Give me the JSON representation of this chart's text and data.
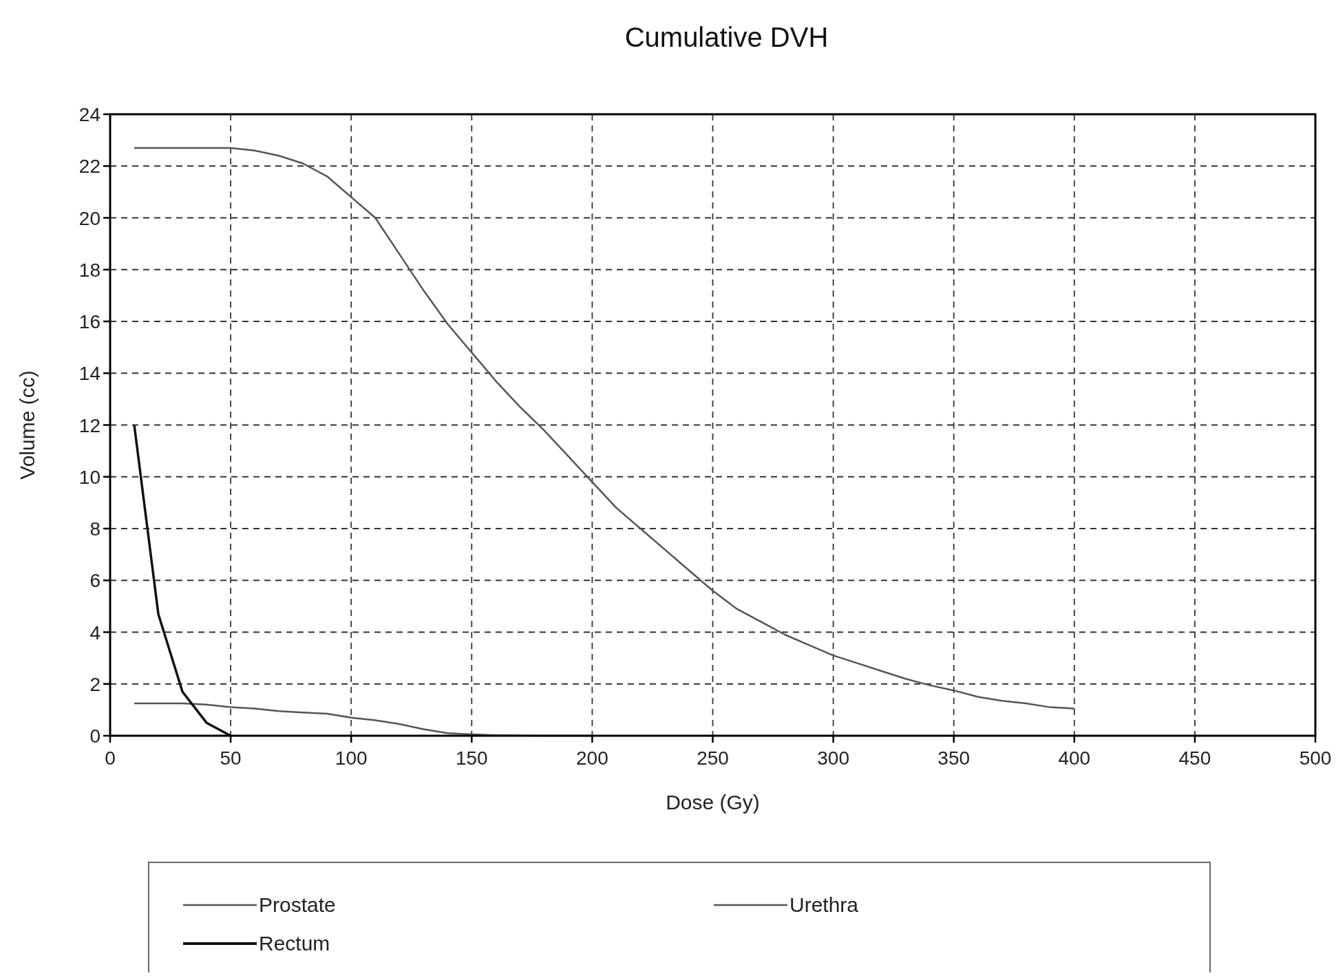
{
  "chart_data": {
    "type": "line",
    "title": "Cumulative DVH",
    "xlabel": "Dose (Gy)",
    "ylabel": "Volume (cc)",
    "xlim": [
      0,
      500
    ],
    "xticks": [
      0,
      50,
      100,
      150,
      200,
      250,
      300,
      350,
      400,
      450,
      500
    ],
    "ylim": [
      0,
      24
    ],
    "yticks": [
      0,
      2,
      4,
      6,
      8,
      10,
      12,
      14,
      16,
      18,
      20,
      22,
      24
    ],
    "grid": true,
    "legend": "bottom",
    "line_style": "solid",
    "series": [
      {
        "name": "Prostate",
        "color": "#555555",
        "x": [
          10,
          50,
          60,
          70,
          80,
          90,
          100,
          110,
          120,
          130,
          140,
          150,
          160,
          170,
          180,
          190,
          200,
          210,
          220,
          230,
          240,
          250,
          260,
          270,
          280,
          290,
          300,
          310,
          320,
          330,
          340,
          350,
          360,
          370,
          380,
          390,
          400
        ],
        "values": [
          22.7,
          22.7,
          22.6,
          22.4,
          22.1,
          21.6,
          20.8,
          20.0,
          18.6,
          17.2,
          15.9,
          14.8,
          13.7,
          12.7,
          11.8,
          10.8,
          9.8,
          8.8,
          8.0,
          7.2,
          6.4,
          5.6,
          4.9,
          4.4,
          3.9,
          3.5,
          3.1,
          2.8,
          2.5,
          2.2,
          1.95,
          1.75,
          1.5,
          1.35,
          1.25,
          1.1,
          1.05
        ]
      },
      {
        "name": "Urethra",
        "color": "#555555",
        "x": [
          10,
          30,
          40,
          50,
          60,
          70,
          80,
          90,
          100,
          110,
          120,
          130,
          140,
          150,
          160,
          180,
          200
        ],
        "values": [
          1.25,
          1.25,
          1.2,
          1.1,
          1.05,
          0.95,
          0.9,
          0.85,
          0.7,
          0.6,
          0.45,
          0.25,
          0.1,
          0.05,
          0.02,
          0,
          0
        ]
      },
      {
        "name": "Rectum",
        "color": "#111111",
        "x": [
          10,
          20,
          30,
          40,
          50
        ],
        "values": [
          12.0,
          4.7,
          1.7,
          0.5,
          0
        ]
      }
    ]
  }
}
